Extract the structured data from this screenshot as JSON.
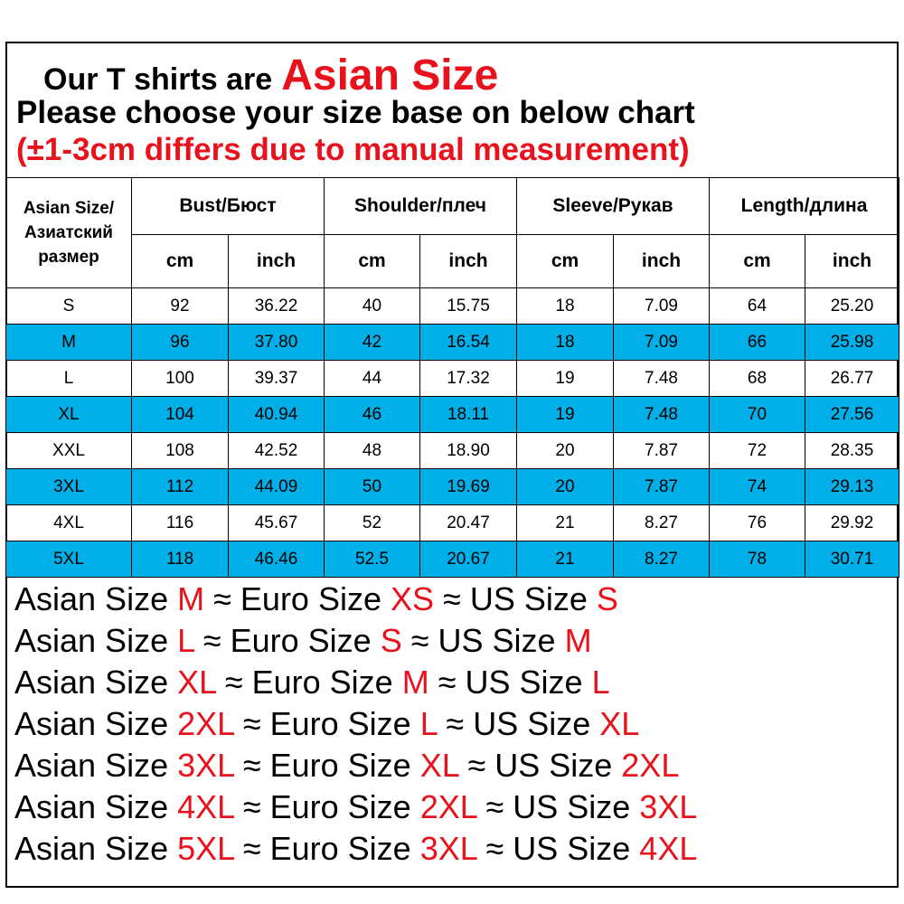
{
  "header": {
    "line1_prefix": "Our T shirts are",
    "line1_highlight": "Asian Size",
    "line2": "Please choose your size base on below chart",
    "line3": "(±1-3cm differs due to manual measurement)"
  },
  "table": {
    "size_header": "Asian Size/Азиатский размер",
    "groups": [
      "Bust/Бюст",
      "Shoulder/плеч",
      "Sleeve/Рукав",
      "Length/длина"
    ],
    "units": [
      "cm",
      "inch"
    ],
    "rows": [
      {
        "size": "S",
        "values": [
          "92",
          "36.22",
          "40",
          "15.75",
          "18",
          "7.09",
          "64",
          "25.20"
        ]
      },
      {
        "size": "M",
        "values": [
          "96",
          "37.80",
          "42",
          "16.54",
          "18",
          "7.09",
          "66",
          "25.98"
        ]
      },
      {
        "size": "L",
        "values": [
          "100",
          "39.37",
          "44",
          "17.32",
          "19",
          "7.48",
          "68",
          "26.77"
        ]
      },
      {
        "size": "XL",
        "values": [
          "104",
          "40.94",
          "46",
          "18.11",
          "19",
          "7.48",
          "70",
          "27.56"
        ]
      },
      {
        "size": "XXL",
        "values": [
          "108",
          "42.52",
          "48",
          "18.90",
          "20",
          "7.87",
          "72",
          "28.35"
        ]
      },
      {
        "size": "3XL",
        "values": [
          "112",
          "44.09",
          "50",
          "19.69",
          "20",
          "7.87",
          "74",
          "29.13"
        ]
      },
      {
        "size": "4XL",
        "values": [
          "116",
          "45.67",
          "52",
          "20.47",
          "21",
          "8.27",
          "76",
          "29.92"
        ]
      },
      {
        "size": "5XL",
        "values": [
          "118",
          "46.46",
          "52.5",
          "20.67",
          "21",
          "8.27",
          "78",
          "30.71"
        ]
      }
    ],
    "highlight_color": "#00aee8"
  },
  "conversion": {
    "asian_label": "Asian Size",
    "euro_label": "Euro Size",
    "us_label": "US Size",
    "approx": "≈",
    "rows": [
      {
        "asian": "M",
        "euro": "XS",
        "us": "S"
      },
      {
        "asian": "L",
        "euro": "S",
        "us": "M"
      },
      {
        "asian": "XL",
        "euro": "M",
        "us": "L"
      },
      {
        "asian": "2XL",
        "euro": "L",
        "us": "XL"
      },
      {
        "asian": "3XL",
        "euro": "XL",
        "us": "2XL"
      },
      {
        "asian": "4XL",
        "euro": "2XL",
        "us": "3XL"
      },
      {
        "asian": "5XL",
        "euro": "3XL",
        "us": "4XL"
      }
    ],
    "value_color": "#e8121c"
  }
}
